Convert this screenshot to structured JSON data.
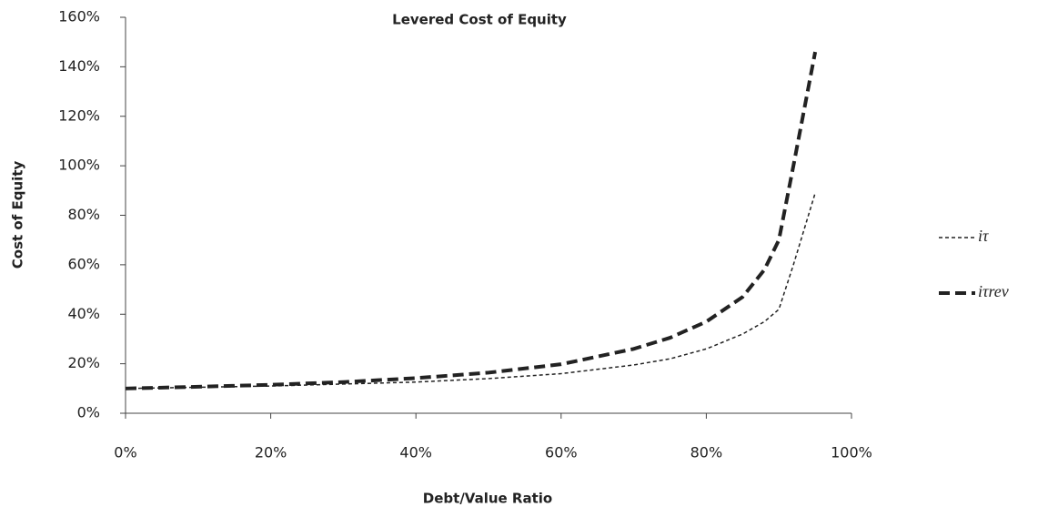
{
  "chart_data": {
    "type": "line",
    "title": "Levered Cost of Equity",
    "x_label": "Debt/Value Ratio",
    "y_label": "Cost of Equity",
    "x": [
      0,
      10,
      20,
      30,
      40,
      50,
      60,
      70,
      75,
      80,
      85,
      88,
      90,
      92,
      95
    ],
    "series": [
      {
        "name": "iτ",
        "color": "#222222",
        "width": 1.5,
        "dash": "4 3",
        "values": [
          10,
          10.5,
          11,
          11.8,
          12.6,
          14,
          16,
          19.5,
          22,
          26,
          32,
          37,
          42,
          60,
          89
        ]
      },
      {
        "name": "iτrev",
        "color": "#222222",
        "width": 4,
        "dash": "12 6",
        "values": [
          10,
          10.7,
          11.5,
          12.6,
          14.2,
          16.4,
          19.8,
          26,
          30.5,
          37,
          47,
          58,
          70,
          100,
          146
        ]
      }
    ],
    "xlim": [
      0,
      100
    ],
    "xticks": [
      {
        "value": 0,
        "label": "0%"
      },
      {
        "value": 20,
        "label": "20%"
      },
      {
        "value": 40,
        "label": "40%"
      },
      {
        "value": 60,
        "label": "60%"
      },
      {
        "value": 80,
        "label": "80%"
      },
      {
        "value": 100,
        "label": "100%"
      }
    ],
    "ylim": [
      0,
      160
    ],
    "yticks": [
      {
        "value": 0,
        "label": "0%"
      },
      {
        "value": 20,
        "label": "20%"
      },
      {
        "value": 40,
        "label": "40%"
      },
      {
        "value": 60,
        "label": "60%"
      },
      {
        "value": 80,
        "label": "80%"
      },
      {
        "value": 100,
        "label": "100%"
      },
      {
        "value": 120,
        "label": "120%"
      },
      {
        "value": 140,
        "label": "140%"
      },
      {
        "value": 160,
        "label": "160%"
      }
    ],
    "legend": "right"
  }
}
